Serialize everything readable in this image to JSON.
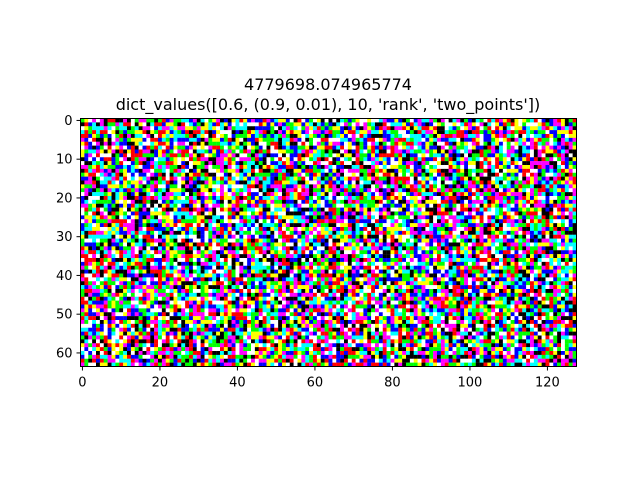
{
  "chart_data": {
    "type": "heatmap",
    "title": "4779698.074965774",
    "subtitle": "dict_values([0.6, (0.9, 0.01), 10, 'rank', 'two_points'])",
    "xlabel": "",
    "ylabel": "",
    "columns": 128,
    "rows": 64,
    "xlim": [
      -0.5,
      127.5
    ],
    "ylim": [
      63.5,
      -0.5
    ],
    "x_ticks": [
      {
        "value": 0,
        "label": "0"
      },
      {
        "value": 20,
        "label": "20"
      },
      {
        "value": 40,
        "label": "40"
      },
      {
        "value": 60,
        "label": "60"
      },
      {
        "value": 80,
        "label": "80"
      },
      {
        "value": 100,
        "label": "100"
      },
      {
        "value": 120,
        "label": "120"
      }
    ],
    "y_ticks": [
      {
        "value": 0,
        "label": "0"
      },
      {
        "value": 10,
        "label": "10"
      },
      {
        "value": 20,
        "label": "20"
      },
      {
        "value": 30,
        "label": "30"
      },
      {
        "value": 40,
        "label": "40"
      },
      {
        "value": 50,
        "label": "50"
      },
      {
        "value": 60,
        "label": "60"
      }
    ],
    "palette": [
      "#000000",
      "#ff0000",
      "#00ff00",
      "#0000ff",
      "#ffff00",
      "#ff00ff",
      "#00ffff",
      "#ffffff"
    ],
    "grid": false
  }
}
